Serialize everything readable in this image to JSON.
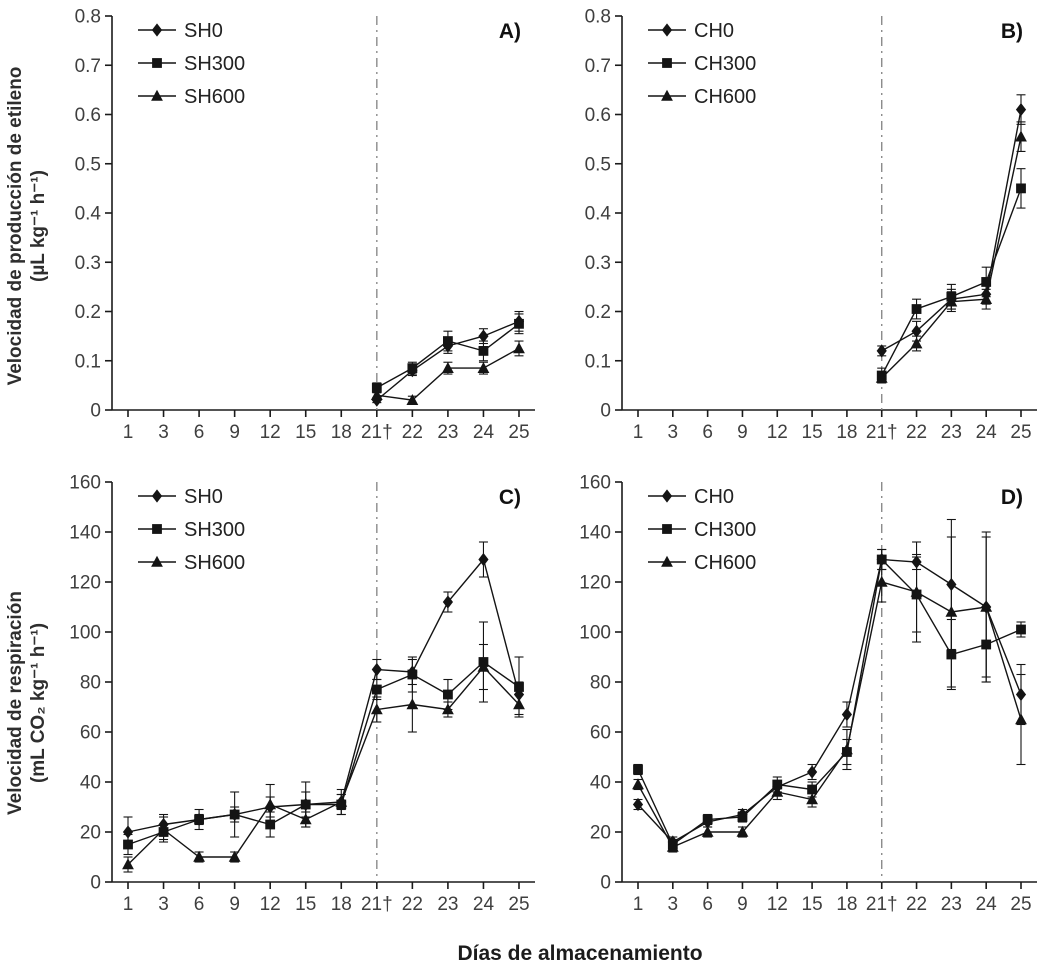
{
  "figure": {
    "xlabel": "Días de almacenamiento",
    "ylabel_top_line1": "Velocidad de producción de etileno",
    "ylabel_top_line2": "(µL kg⁻¹ h⁻¹)",
    "ylabel_bottom_line1": "Velocidad de respiración",
    "ylabel_bottom_line2": "(mL CO₂ kg⁻¹ h⁻¹)",
    "text_color": "#3f3f3f",
    "axis_color": "#1a1a1a",
    "marker_color": "#141414",
    "vline_color": "#8a8a8a"
  },
  "chart_data": [
    {
      "id": "A",
      "type": "line",
      "panel_label": "A)",
      "x_categories": [
        "1",
        "3",
        "6",
        "9",
        "12",
        "15",
        "18",
        "21†",
        "22",
        "23",
        "24",
        "25"
      ],
      "vline_index": 7,
      "ylim": [
        0,
        0.8
      ],
      "ytick_step": 0.1,
      "ytick_decimals": 1,
      "legend_position": "top-left",
      "grid": false,
      "series": [
        {
          "name": "SH0",
          "marker": "diamond",
          "values": [
            null,
            null,
            null,
            null,
            null,
            null,
            null,
            0.02,
            0.08,
            0.13,
            0.15,
            0.18
          ],
          "errors": [
            null,
            null,
            null,
            null,
            null,
            null,
            null,
            0.005,
            0.01,
            0.015,
            0.015,
            0.02
          ]
        },
        {
          "name": "SH300",
          "marker": "square",
          "values": [
            null,
            null,
            null,
            null,
            null,
            null,
            null,
            0.045,
            0.085,
            0.14,
            0.12,
            0.175
          ],
          "errors": [
            null,
            null,
            null,
            null,
            null,
            null,
            null,
            0.01,
            0.012,
            0.02,
            0.02,
            0.02
          ]
        },
        {
          "name": "SH600",
          "marker": "triangle",
          "values": [
            null,
            null,
            null,
            null,
            null,
            null,
            null,
            0.03,
            0.02,
            0.085,
            0.085,
            0.125
          ],
          "errors": [
            null,
            null,
            null,
            null,
            null,
            null,
            null,
            0.006,
            0.008,
            0.012,
            0.012,
            0.015
          ]
        }
      ]
    },
    {
      "id": "B",
      "type": "line",
      "panel_label": "B)",
      "x_categories": [
        "1",
        "3",
        "6",
        "9",
        "12",
        "15",
        "18",
        "21†",
        "22",
        "23",
        "24",
        "25"
      ],
      "vline_index": 7,
      "ylim": [
        0,
        0.8
      ],
      "ytick_step": 0.1,
      "ytick_decimals": 1,
      "legend_position": "top-left",
      "grid": false,
      "series": [
        {
          "name": "CH0",
          "marker": "diamond",
          "values": [
            null,
            null,
            null,
            null,
            null,
            null,
            null,
            0.12,
            0.16,
            0.225,
            0.235,
            0.61
          ],
          "errors": [
            null,
            null,
            null,
            null,
            null,
            null,
            null,
            0.01,
            0.02,
            0.02,
            0.02,
            0.03
          ]
        },
        {
          "name": "CH300",
          "marker": "square",
          "values": [
            null,
            null,
            null,
            null,
            null,
            null,
            null,
            0.07,
            0.205,
            0.23,
            0.26,
            0.45
          ],
          "errors": [
            null,
            null,
            null,
            null,
            null,
            null,
            null,
            0.015,
            0.02,
            0.025,
            0.03,
            0.04
          ]
        },
        {
          "name": "CH600",
          "marker": "triangle",
          "values": [
            null,
            null,
            null,
            null,
            null,
            null,
            null,
            0.065,
            0.135,
            0.22,
            0.225,
            0.555
          ],
          "errors": [
            null,
            null,
            null,
            null,
            null,
            null,
            null,
            0.01,
            0.015,
            0.02,
            0.02,
            0.03
          ]
        }
      ]
    },
    {
      "id": "C",
      "type": "line",
      "panel_label": "C)",
      "x_categories": [
        "1",
        "3",
        "6",
        "9",
        "12",
        "15",
        "18",
        "21†",
        "22",
        "23",
        "24",
        "25"
      ],
      "vline_index": 7,
      "ylim": [
        0,
        160
      ],
      "ytick_step": 20,
      "ytick_decimals": 0,
      "legend_position": "top-left",
      "grid": false,
      "series": [
        {
          "name": "SH0",
          "marker": "diamond",
          "values": [
            20,
            23,
            25,
            27,
            30,
            31,
            32,
            85,
            84,
            112,
            129,
            75
          ],
          "errors": [
            6,
            4,
            2,
            3,
            4,
            5,
            3,
            4,
            5,
            4,
            7,
            5
          ]
        },
        {
          "name": "SH300",
          "marker": "square",
          "values": [
            15,
            20,
            25,
            27,
            23,
            31,
            31,
            77,
            83,
            75,
            88,
            78
          ],
          "errors": [
            4,
            3,
            4,
            9,
            5,
            9,
            4,
            4,
            7,
            6,
            16,
            12
          ]
        },
        {
          "name": "SH600",
          "marker": "triangle",
          "values": [
            7,
            21,
            10,
            10,
            31,
            25,
            32,
            69,
            71,
            69,
            86,
            71
          ],
          "errors": [
            3,
            5,
            2,
            2,
            8,
            3,
            5,
            5,
            11,
            3,
            9,
            4
          ]
        }
      ]
    },
    {
      "id": "D",
      "type": "line",
      "panel_label": "D)",
      "x_categories": [
        "1",
        "3",
        "6",
        "9",
        "12",
        "15",
        "18",
        "21†",
        "22",
        "23",
        "24",
        "25"
      ],
      "vline_index": 7,
      "ylim": [
        0,
        160
      ],
      "ytick_step": 20,
      "ytick_decimals": 0,
      "legend_position": "top-left",
      "grid": false,
      "series": [
        {
          "name": "CH0",
          "marker": "diamond",
          "values": [
            31,
            16,
            24,
            27,
            38,
            44,
            67,
            129,
            128,
            119,
            110,
            75
          ],
          "errors": [
            2,
            2,
            2,
            2,
            2,
            3,
            5,
            4,
            3,
            26,
            30,
            12
          ]
        },
        {
          "name": "CH300",
          "marker": "square",
          "values": [
            45,
            15,
            25,
            26,
            39,
            37,
            52,
            129,
            115,
            91,
            95,
            101
          ],
          "errors": [
            2,
            2,
            2,
            2,
            3,
            3,
            5,
            4,
            15,
            14,
            15,
            3
          ]
        },
        {
          "name": "CH600",
          "marker": "triangle",
          "values": [
            39,
            14,
            20,
            20,
            36,
            33,
            53,
            120,
            116,
            108,
            110,
            65
          ],
          "errors": [
            2,
            2,
            2,
            2,
            3,
            3,
            8,
            8,
            20,
            30,
            28,
            18
          ]
        }
      ]
    }
  ]
}
